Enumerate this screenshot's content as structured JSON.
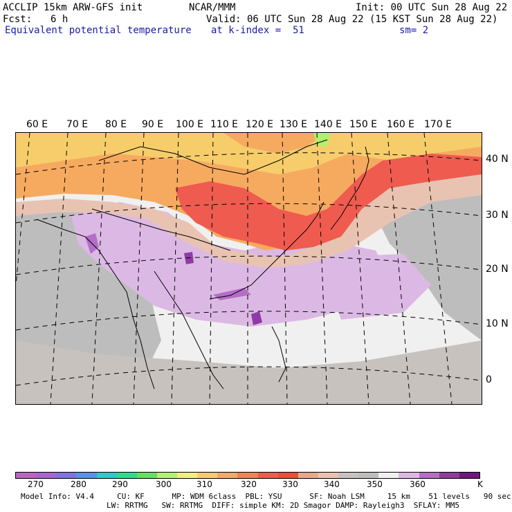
{
  "header": {
    "model": "ACCLIP 15km ARW-GFS init",
    "org": "NCAR/MMM",
    "init": "Init: 00 UTC Sun 28 Aug 22",
    "fcst_label": "Fcst:",
    "fcst_value": "6 h",
    "valid": "Valid: 06 UTC Sun 28 Aug 22 (15 KST Sun 28 Aug 22)",
    "field": "Equivalent potential temperature",
    "level": "at k-index =  51",
    "smoothing": "sm= 2"
  },
  "map": {
    "lon_labels": [
      "60 E",
      "70 E",
      "80 E",
      "90 E",
      "100 E",
      "110 E",
      "120 E",
      "130 E",
      "140 E",
      "150 E",
      "160 E",
      "170 E"
    ],
    "lat_labels": [
      "40 N",
      "30 N",
      "20 N",
      "10 N",
      "0"
    ]
  },
  "colorbar": {
    "colors": [
      "#c35ecb",
      "#a865d8",
      "#7f72e6",
      "#5b8ff0",
      "#2ec9c9",
      "#2bdc8f",
      "#5ee35b",
      "#b4ef6d",
      "#f1f07c",
      "#f7cd6c",
      "#f6aa5f",
      "#f3834f",
      "#ef5b4f",
      "#ee4c38",
      "#f2a48a",
      "#e9c3b1",
      "#c7c2be",
      "#bdbdbd",
      "#f0f0f0",
      "#dcb9e4",
      "#b56ec8",
      "#8f3aa6",
      "#6e1687"
    ],
    "tick_labels": [
      "270",
      "280",
      "290",
      "300",
      "310",
      "320",
      "330",
      "340",
      "350",
      "360",
      "K"
    ],
    "units": "K"
  },
  "footer": {
    "line1": "Model Info: V4.4     CU: KF      MP: WDM 6class  PBL: YSU      SF: Noah LSM     15 km    51 levels   90 sec",
    "line2": "LW: RRTMG   SW: RRTMG  DIFF: simple KM: 2D Smagor DAMP: Rayleigh3  SFLAY: MM5"
  }
}
